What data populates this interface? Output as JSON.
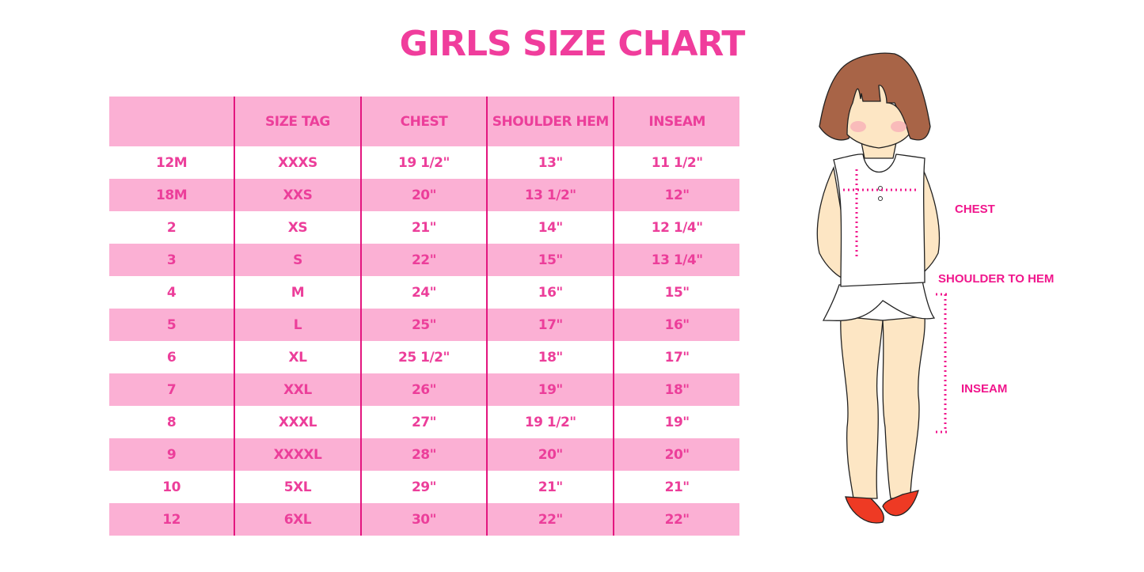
{
  "title": "GIRLS SIZE CHART",
  "table": {
    "headers": [
      "",
      "SIZE TAG",
      "CHEST",
      "SHOULDER HEM",
      "INSEAM"
    ],
    "rows": [
      [
        "12M",
        "XXXS",
        "19 1/2\"",
        "13\"",
        "11 1/2\""
      ],
      [
        "18M",
        "XXS",
        "20\"",
        "13 1/2\"",
        "12\""
      ],
      [
        "2",
        "XS",
        "21\"",
        "14\"",
        "12 1/4\""
      ],
      [
        "3",
        "S",
        "22\"",
        "15\"",
        "13 1/4\""
      ],
      [
        "4",
        "M",
        "24\"",
        "16\"",
        "15\""
      ],
      [
        "5",
        "L",
        "25\"",
        "17\"",
        "16\""
      ],
      [
        "6",
        "XL",
        "25 1/2\"",
        "18\"",
        "17\""
      ],
      [
        "7",
        "XXL",
        "26\"",
        "19\"",
        "18\""
      ],
      [
        "8",
        "XXXL",
        "27\"",
        "19 1/2\"",
        "19\""
      ],
      [
        "9",
        "XXXXL",
        "28\"",
        "20\"",
        "20\""
      ],
      [
        "10",
        "5XL",
        "29\"",
        "21\"",
        "21\""
      ],
      [
        "12",
        "6XL",
        "30\"",
        "22\"",
        "22\""
      ]
    ]
  },
  "figure": {
    "labels": {
      "chest": "CHEST",
      "shoulder": "SHOULDER TO HEM",
      "inseam": "INSEAM"
    }
  },
  "colors": {
    "accent": "#ec3e9a",
    "stripe": "#fbb0d4",
    "divider": "#e3167f"
  }
}
